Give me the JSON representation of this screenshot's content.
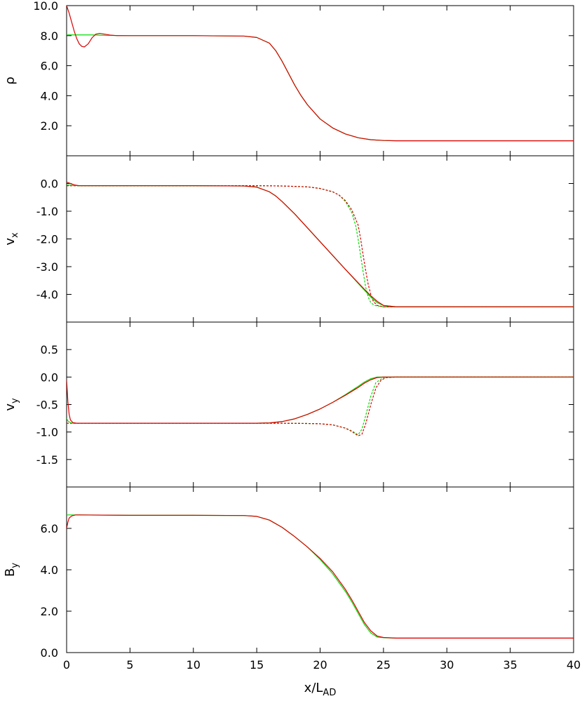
{
  "chart_data": {
    "type": "line",
    "xlabel": {
      "main": "x/L",
      "sub": "AD"
    },
    "xlim": [
      0,
      40
    ],
    "xticks": [
      "0",
      "5",
      "10",
      "15",
      "20",
      "25",
      "30",
      "35",
      "40"
    ],
    "xtick_values": [
      0,
      5,
      10,
      15,
      20,
      25,
      30,
      35,
      40
    ],
    "colors": {
      "green": "#00dd00",
      "red": "#dd0000",
      "axis": "#000000"
    },
    "panels": [
      {
        "id": "rho",
        "ylabel": {
          "main": "ρ",
          "sub": ""
        },
        "ylim": [
          0,
          10
        ],
        "yticks": [
          "2.0",
          "4.0",
          "6.0",
          "8.0",
          "10.0"
        ],
        "ytick_values": [
          2,
          4,
          6,
          8,
          10
        ],
        "series": [
          {
            "color": "green",
            "dash": false,
            "x": [
              0,
              1,
              2,
              3,
              5,
              10,
              14,
              15,
              16,
              16.5,
              17,
              17.5,
              18,
              18.5,
              19,
              20,
              21,
              22,
              23,
              24,
              25,
              26,
              30,
              35,
              40
            ],
            "y": [
              8.05,
              8.05,
              8.05,
              8.02,
              8.0,
              8.0,
              7.97,
              7.88,
              7.5,
              7.0,
              6.3,
              5.5,
              4.7,
              4.0,
              3.4,
              2.45,
              1.85,
              1.45,
              1.2,
              1.07,
              1.02,
              1.0,
              1.0,
              1.0,
              1.0
            ]
          },
          {
            "color": "red",
            "dash": false,
            "x": [
              0,
              0.2,
              0.4,
              0.6,
              0.8,
              1.0,
              1.2,
              1.4,
              1.7,
              2.0,
              2.3,
              2.6,
              3.0,
              3.5,
              4,
              5,
              10,
              14,
              15,
              16,
              16.5,
              17,
              17.5,
              18,
              18.5,
              19,
              20,
              21,
              22,
              23,
              24,
              25,
              26,
              30,
              35,
              40
            ],
            "y": [
              10.0,
              9.5,
              8.9,
              8.3,
              7.8,
              7.45,
              7.28,
              7.25,
              7.45,
              7.85,
              8.1,
              8.15,
              8.1,
              8.03,
              8.0,
              8.0,
              8.0,
              7.97,
              7.88,
              7.5,
              7.0,
              6.3,
              5.5,
              4.7,
              4.0,
              3.4,
              2.45,
              1.85,
              1.45,
              1.2,
              1.07,
              1.02,
              1.0,
              1.0,
              1.0,
              1.0
            ]
          }
        ]
      },
      {
        "id": "vx",
        "ylabel": {
          "main": "v",
          "sub": "x"
        },
        "ylim": [
          -5,
          1
        ],
        "yticks": [
          "-4.0",
          "-3.0",
          "-2.0",
          "-1.0",
          "0.0"
        ],
        "ytick_values": [
          -4,
          -3,
          -2,
          -1,
          0
        ],
        "series": [
          {
            "color": "green",
            "dash": false,
            "x": [
              0,
              0.5,
              1,
              2,
              5,
              10,
              14,
              15,
              16,
              16.5,
              17,
              18,
              19,
              20,
              21,
              22,
              23,
              23.5,
              24,
              24.5,
              25,
              26,
              30,
              40
            ],
            "y": [
              -0.05,
              -0.07,
              -0.08,
              -0.08,
              -0.08,
              -0.08,
              -0.09,
              -0.13,
              -0.3,
              -0.45,
              -0.65,
              -1.1,
              -1.6,
              -2.1,
              -2.6,
              -3.1,
              -3.6,
              -3.85,
              -4.1,
              -4.3,
              -4.4,
              -4.45,
              -4.45,
              -4.45
            ]
          },
          {
            "color": "red",
            "dash": false,
            "x": [
              0,
              0.3,
              0.6,
              1,
              2,
              5,
              10,
              14,
              15,
              16,
              16.5,
              17,
              18,
              19,
              20,
              21,
              22,
              23,
              23.5,
              24,
              24.5,
              25,
              26,
              30,
              40
            ],
            "y": [
              0.05,
              0.0,
              -0.05,
              -0.08,
              -0.08,
              -0.08,
              -0.08,
              -0.09,
              -0.13,
              -0.3,
              -0.45,
              -0.65,
              -1.1,
              -1.6,
              -2.1,
              -2.6,
              -3.1,
              -3.58,
              -3.82,
              -4.05,
              -4.25,
              -4.4,
              -4.45,
              -4.45,
              -4.45
            ]
          },
          {
            "color": "green",
            "dash": true,
            "x": [
              0,
              1,
              5,
              10,
              15,
              17,
              19,
              20,
              21,
              21.5,
              22,
              22.5,
              22.8,
              23,
              23.2,
              23.4,
              23.6,
              23.8,
              24,
              24.3,
              25,
              30,
              40
            ],
            "y": [
              -0.08,
              -0.08,
              -0.08,
              -0.08,
              -0.08,
              -0.09,
              -0.12,
              -0.18,
              -0.3,
              -0.42,
              -0.65,
              -1.05,
              -1.5,
              -2.0,
              -2.6,
              -3.2,
              -3.75,
              -4.1,
              -4.3,
              -4.4,
              -4.45,
              -4.45,
              -4.45
            ]
          },
          {
            "color": "red",
            "dash": true,
            "x": [
              0,
              1,
              5,
              10,
              15,
              17,
              19,
              20,
              21,
              21.5,
              22,
              22.5,
              23,
              23.2,
              23.4,
              23.6,
              23.8,
              24,
              24.2,
              24.5,
              25,
              30,
              40
            ],
            "y": [
              -0.08,
              -0.08,
              -0.08,
              -0.08,
              -0.08,
              -0.09,
              -0.12,
              -0.18,
              -0.3,
              -0.42,
              -0.62,
              -0.95,
              -1.5,
              -2.0,
              -2.6,
              -3.15,
              -3.65,
              -4.0,
              -4.25,
              -4.4,
              -4.45,
              -4.45,
              -4.45
            ]
          }
        ]
      },
      {
        "id": "vy",
        "ylabel": {
          "main": "v",
          "sub": "y"
        },
        "ylim": [
          -2,
          1
        ],
        "yticks": [
          "-1.5",
          "-1.0",
          "-0.5",
          "0.0",
          "0.5"
        ],
        "ytick_values": [
          -1.5,
          -1,
          -0.5,
          0,
          0.5
        ],
        "series": [
          {
            "color": "green",
            "dash": false,
            "x": [
              0,
              0.1,
              0.3,
              0.5,
              0.8,
              1,
              2,
              5,
              10,
              15,
              16,
              17,
              18,
              19,
              20,
              21,
              22,
              23,
              23.5,
              24,
              24.5,
              25,
              26,
              30,
              40
            ],
            "y": [
              -0.75,
              -0.8,
              -0.83,
              -0.84,
              -0.84,
              -0.84,
              -0.84,
              -0.84,
              -0.84,
              -0.84,
              -0.835,
              -0.81,
              -0.76,
              -0.68,
              -0.58,
              -0.46,
              -0.32,
              -0.17,
              -0.09,
              -0.03,
              0.0,
              0.0,
              0.0,
              0.0,
              0.0
            ]
          },
          {
            "color": "red",
            "dash": false,
            "x": [
              0,
              0.1,
              0.2,
              0.3,
              0.5,
              0.8,
              1,
              2,
              5,
              10,
              15,
              16,
              17,
              18,
              19,
              20,
              21,
              22,
              23,
              23.5,
              24,
              24.5,
              25,
              26,
              30,
              40
            ],
            "y": [
              -0.05,
              -0.45,
              -0.68,
              -0.78,
              -0.83,
              -0.84,
              -0.84,
              -0.84,
              -0.84,
              -0.84,
              -0.84,
              -0.835,
              -0.81,
              -0.76,
              -0.68,
              -0.58,
              -0.46,
              -0.33,
              -0.19,
              -0.11,
              -0.05,
              -0.01,
              0.0,
              0.0,
              0.0,
              0.0
            ]
          },
          {
            "color": "green",
            "dash": true,
            "x": [
              0,
              1,
              5,
              10,
              15,
              17,
              19,
              20,
              21,
              22,
              22.5,
              23,
              23.3,
              23.6,
              24,
              24.4,
              25,
              26,
              30,
              40
            ],
            "y": [
              -0.84,
              -0.84,
              -0.84,
              -0.84,
              -0.84,
              -0.84,
              -0.845,
              -0.85,
              -0.87,
              -0.93,
              -0.98,
              -1.05,
              -0.95,
              -0.7,
              -0.35,
              -0.1,
              -0.01,
              0.0,
              0.0,
              0.0
            ]
          },
          {
            "color": "red",
            "dash": true,
            "x": [
              0,
              1,
              5,
              10,
              15,
              17,
              19,
              20,
              21,
              22,
              22.5,
              23,
              23.3,
              23.6,
              24,
              24.4,
              24.8,
              25.2,
              26,
              30,
              40
            ],
            "y": [
              -0.84,
              -0.84,
              -0.84,
              -0.84,
              -0.84,
              -0.84,
              -0.845,
              -0.85,
              -0.87,
              -0.93,
              -0.99,
              -1.07,
              -1.04,
              -0.85,
              -0.5,
              -0.2,
              -0.06,
              -0.01,
              0.0,
              0.0,
              0.0
            ]
          }
        ]
      },
      {
        "id": "By",
        "ylabel": {
          "main": "B",
          "sub": "y"
        },
        "ylim": [
          0,
          8
        ],
        "yticks": [
          "0.0",
          "2.0",
          "4.0",
          "6.0"
        ],
        "ytick_values": [
          0,
          2,
          4,
          6
        ],
        "series": [
          {
            "color": "green",
            "dash": false,
            "x": [
              0,
              0.5,
              1,
              5,
              10,
              14,
              15,
              16,
              17,
              18,
              19,
              20,
              21,
              22,
              22.5,
              23,
              23.5,
              24,
              24.5,
              25,
              26,
              30,
              40
            ],
            "y": [
              6.65,
              6.65,
              6.65,
              6.63,
              6.63,
              6.62,
              6.58,
              6.4,
              6.05,
              5.6,
              5.1,
              4.5,
              3.8,
              2.95,
              2.45,
              1.9,
              1.35,
              0.95,
              0.75,
              0.72,
              0.7,
              0.7,
              0.7
            ]
          },
          {
            "color": "red",
            "dash": false,
            "x": [
              0,
              0.1,
              0.2,
              0.4,
              0.7,
              1,
              5,
              10,
              14,
              15,
              16,
              17,
              18,
              19,
              20,
              21,
              22,
              22.5,
              23,
              23.5,
              24,
              24.5,
              25,
              26,
              30,
              40
            ],
            "y": [
              6.0,
              6.3,
              6.5,
              6.6,
              6.65,
              6.65,
              6.63,
              6.63,
              6.62,
              6.58,
              6.4,
              6.05,
              5.6,
              5.1,
              4.55,
              3.9,
              3.05,
              2.55,
              2.0,
              1.45,
              1.05,
              0.8,
              0.73,
              0.7,
              0.7,
              0.7
            ]
          }
        ]
      }
    ]
  }
}
